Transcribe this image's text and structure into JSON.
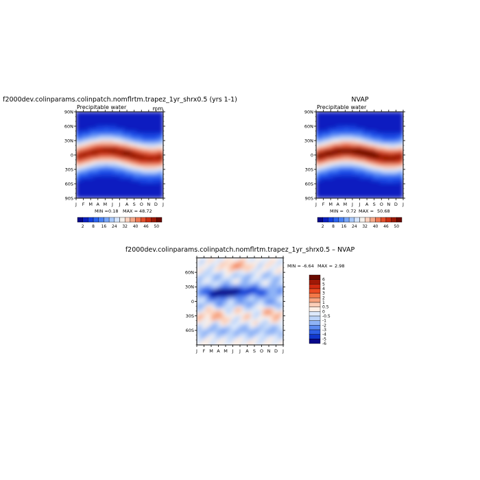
{
  "chart_data": [
    {
      "type": "heatmap",
      "title": "f2000dev.colinparams.colinpatch.nomflrtm.trapez_1yr_shrx0.5 (yrs 1-1)",
      "subtitle": "Precipitable water",
      "units": "mm",
      "x_tick_labels": [
        "J",
        "F",
        "M",
        "A",
        "M",
        "J",
        "J",
        "A",
        "S",
        "O",
        "N",
        "D",
        "J"
      ],
      "y_tick_labels": [
        "90N",
        "60N",
        "30N",
        "0",
        "30S",
        "60S",
        "90S"
      ],
      "y_tick_values": [
        90,
        60,
        30,
        0,
        -30,
        -60,
        -90
      ],
      "ylim": [
        -90,
        90
      ],
      "stats": {
        "min_label": "MIN =",
        "min": "0.18",
        "max_label": "MAX =",
        "max": "48.72"
      },
      "colorbar": {
        "labels": [
          "2",
          "8",
          "16",
          "24",
          "32",
          "40",
          "46",
          "50"
        ]
      }
    },
    {
      "type": "heatmap",
      "title": "NVAP",
      "subtitle": "Precipitable water",
      "units": "",
      "x_tick_labels": [
        "J",
        "F",
        "M",
        "A",
        "M",
        "J",
        "J",
        "A",
        "S",
        "O",
        "N",
        "D",
        "J"
      ],
      "y_tick_labels": [
        "90N",
        "60N",
        "30N",
        "0",
        "30S",
        "60S",
        "90S"
      ],
      "y_tick_values": [
        90,
        60,
        30,
        0,
        -30,
        -60,
        -90
      ],
      "ylim": [
        -90,
        90
      ],
      "stats": {
        "min_label": "MIN =",
        "min": "0.72",
        "max_label": "MAX =",
        "max": "50.68"
      },
      "colorbar": {
        "labels": [
          "2",
          "8",
          "16",
          "24",
          "32",
          "40",
          "46",
          "50"
        ]
      }
    },
    {
      "type": "heatmap",
      "title": "f2000dev.colinparams.colinpatch.nomflrtm.trapez_1yr_shrx0.5 – NVAP",
      "x_tick_labels": [
        "J",
        "F",
        "M",
        "A",
        "M",
        "J",
        "J",
        "A",
        "S",
        "O",
        "N",
        "D",
        "J"
      ],
      "y_tick_labels": [
        "60N",
        "30N",
        "0",
        "30S",
        "60S"
      ],
      "y_tick_values": [
        60,
        30,
        0,
        -30,
        -60
      ],
      "ylim": [
        -90,
        90
      ],
      "stats": {
        "min_label": "MIN =",
        "min": "-6.64",
        "max_label": "MAX =",
        "max": "2.98"
      },
      "colorbar": {
        "labels": [
          "6",
          "5",
          "4",
          "3",
          "2",
          "1",
          "0.5",
          "0",
          "-0.5",
          "-1",
          "-2",
          "-3",
          "-4",
          "-5",
          "-6"
        ]
      }
    }
  ],
  "palettes": {
    "sequential": [
      "#08088a",
      "#0a1fc0",
      "#1540e0",
      "#2a62f0",
      "#4a82f5",
      "#78a6f8",
      "#a8c8fa",
      "#d4e4fb",
      "#f4f0ec",
      "#fad2bf",
      "#f5a98a",
      "#ee7a55",
      "#e3502c",
      "#c82e12",
      "#9a1a05",
      "#6a0a00"
    ],
    "diverging": [
      "#6a0a00",
      "#a01806",
      "#d02a10",
      "#ea4a22",
      "#f27848",
      "#f7a27e",
      "#fbcdb7",
      "#fdeee4",
      "#dde9fb",
      "#bcd4f9",
      "#8fb3f6",
      "#5b8af1",
      "#2f5fe6",
      "#1036cc",
      "#08088a"
    ]
  }
}
